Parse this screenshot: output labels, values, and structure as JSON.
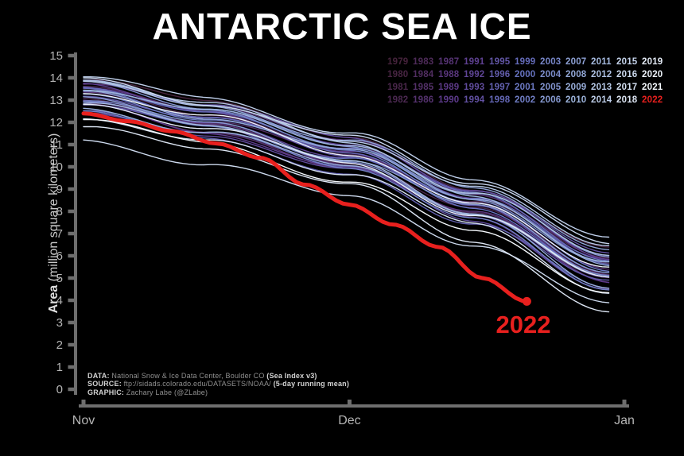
{
  "colors": {
    "background": "#000000",
    "title": "#ffffff",
    "axis": "#6e6e6e",
    "tick_label": "#b5b5b5",
    "accent_red": "#e8201e",
    "footer_text": "#8f8f8f",
    "footer_bold": "#d2d2d2"
  },
  "chart_data": {
    "type": "line",
    "title": "ANTARCTIC SEA ICE",
    "ylabel_bold": "Area",
    "ylabel_rest": " (million square kilometers)",
    "ylim": [
      0,
      15
    ],
    "y_ticks": [
      0,
      1,
      2,
      3,
      4,
      5,
      6,
      7,
      8,
      9,
      10,
      11,
      12,
      13,
      14,
      15
    ],
    "x_ticks": [
      {
        "label": "Nov",
        "day": 0
      },
      {
        "label": "Dec",
        "day": 30
      },
      {
        "label": "Jan",
        "day": 61
      }
    ],
    "x_days": [
      0,
      14,
      30,
      44,
      59.5
    ],
    "grid": false,
    "legend_position": "top-right",
    "annotation": {
      "text": "2022",
      "color": "#e8201e"
    },
    "series": [
      {
        "name": "1979",
        "color": "#46233c",
        "values": [
          13.9,
          12.9,
          11.3,
          9.1,
          6.3
        ]
      },
      {
        "name": "1980",
        "color": "#482543",
        "values": [
          13.4,
          12.3,
          10.7,
          8.5,
          5.6
        ]
      },
      {
        "name": "1981",
        "color": "#4a274b",
        "values": [
          13.0,
          11.9,
          10.3,
          8.1,
          5.1
        ]
      },
      {
        "name": "1982",
        "color": "#4c2952",
        "values": [
          13.6,
          12.5,
          10.9,
          8.7,
          5.8
        ]
      },
      {
        "name": "1983",
        "color": "#4e2b59",
        "values": [
          12.8,
          11.7,
          10.1,
          7.9,
          4.8
        ]
      },
      {
        "name": "1984",
        "color": "#502d60",
        "values": [
          13.2,
          12.1,
          10.5,
          8.3,
          5.3
        ]
      },
      {
        "name": "1985",
        "color": "#533068",
        "values": [
          12.6,
          11.5,
          9.9,
          7.7,
          4.6
        ]
      },
      {
        "name": "1986",
        "color": "#55326f",
        "values": [
          13.8,
          12.7,
          11.1,
          8.9,
          6.0
        ]
      },
      {
        "name": "1987",
        "color": "#573476",
        "values": [
          13.3,
          12.2,
          10.6,
          8.4,
          5.4
        ]
      },
      {
        "name": "1988",
        "color": "#59367d",
        "values": [
          12.9,
          11.8,
          10.2,
          8.0,
          5.0
        ]
      },
      {
        "name": "1989",
        "color": "#5b3885",
        "values": [
          13.5,
          12.4,
          10.8,
          8.6,
          5.7
        ]
      },
      {
        "name": "1990",
        "color": "#5d3a8c",
        "values": [
          12.7,
          11.6,
          10.0,
          7.8,
          4.7
        ]
      },
      {
        "name": "1991",
        "color": "#5e4091",
        "values": [
          13.7,
          12.6,
          11.0,
          8.8,
          5.9
        ]
      },
      {
        "name": "1992",
        "color": "#5f4596",
        "values": [
          13.1,
          12.0,
          10.4,
          8.2,
          5.2
        ]
      },
      {
        "name": "1993",
        "color": "#604b9c",
        "values": [
          12.5,
          11.4,
          9.8,
          7.6,
          4.5
        ]
      },
      {
        "name": "1994",
        "color": "#6150a1",
        "values": [
          13.9,
          12.8,
          11.2,
          9.0,
          6.2
        ]
      },
      {
        "name": "1995",
        "color": "#6256a6",
        "values": [
          13.2,
          12.1,
          10.5,
          8.3,
          5.3
        ]
      },
      {
        "name": "1996",
        "color": "#625cab",
        "values": [
          12.8,
          11.7,
          10.1,
          7.9,
          4.8
        ]
      },
      {
        "name": "1997",
        "color": "#6361b0",
        "values": [
          12.4,
          11.3,
          9.7,
          7.5,
          4.4
        ]
      },
      {
        "name": "1998",
        "color": "#6467b6",
        "values": [
          13.4,
          12.3,
          10.7,
          8.5,
          5.6
        ]
      },
      {
        "name": "1999",
        "color": "#656cbb",
        "values": [
          13.6,
          12.5,
          10.9,
          8.7,
          5.8
        ]
      },
      {
        "name": "2000",
        "color": "#6672c0",
        "values": [
          13.0,
          11.9,
          10.3,
          8.1,
          5.1
        ]
      },
      {
        "name": "2001",
        "color": "#6c79c3",
        "values": [
          13.3,
          12.2,
          10.6,
          8.4,
          5.4
        ]
      },
      {
        "name": "2002",
        "color": "#717fc6",
        "values": [
          12.6,
          11.5,
          9.9,
          7.7,
          4.6
        ]
      },
      {
        "name": "2003",
        "color": "#7786c8",
        "values": [
          13.5,
          12.4,
          10.8,
          8.6,
          5.7
        ]
      },
      {
        "name": "2004",
        "color": "#7c8ccb",
        "values": [
          12.9,
          11.8,
          10.2,
          8.0,
          5.0
        ]
      },
      {
        "name": "2005",
        "color": "#8293ce",
        "values": [
          13.7,
          12.6,
          11.0,
          8.8,
          5.9
        ]
      },
      {
        "name": "2006",
        "color": "#879ad1",
        "values": [
          13.1,
          12.0,
          10.4,
          8.2,
          5.2
        ]
      },
      {
        "name": "2007",
        "color": "#8da0d4",
        "values": [
          13.9,
          12.8,
          11.2,
          9.0,
          6.2
        ]
      },
      {
        "name": "2008",
        "color": "#92a7d6",
        "values": [
          13.4,
          12.3,
          10.7,
          8.5,
          5.6
        ]
      },
      {
        "name": "2009",
        "color": "#98add9",
        "values": [
          12.7,
          11.6,
          10.0,
          7.8,
          4.7
        ]
      },
      {
        "name": "2010",
        "color": "#9db4dc",
        "values": [
          13.6,
          12.5,
          10.9,
          8.7,
          5.8
        ]
      },
      {
        "name": "2011",
        "color": "#a5badf",
        "values": [
          12.9,
          11.8,
          10.2,
          8.0,
          5.0
        ]
      },
      {
        "name": "2012",
        "color": "#adc0e2",
        "values": [
          13.8,
          12.7,
          11.1,
          8.9,
          6.0
        ]
      },
      {
        "name": "2013",
        "color": "#b5c7e5",
        "values": [
          13.8,
          12.8,
          11.3,
          9.1,
          6.4
        ]
      },
      {
        "name": "2014",
        "color": "#bdcde8",
        "values": [
          14.0,
          13.1,
          11.6,
          9.4,
          6.7
        ]
      },
      {
        "name": "2015",
        "color": "#c5d3eb",
        "values": [
          13.9,
          12.9,
          11.4,
          9.2,
          6.5
        ]
      },
      {
        "name": "2016",
        "color": "#ccd9ed",
        "values": [
          11.2,
          10.2,
          8.7,
          6.3,
          4.0
        ]
      },
      {
        "name": "2017",
        "color": "#d4dff0",
        "values": [
          12.3,
          11.2,
          9.6,
          7.4,
          4.4
        ]
      },
      {
        "name": "2018",
        "color": "#dce5f3",
        "values": [
          11.9,
          10.8,
          9.1,
          6.7,
          3.5
        ]
      },
      {
        "name": "2019",
        "color": "#e4ebf6",
        "values": [
          12.8,
          11.7,
          10.1,
          7.9,
          5.1
        ]
      },
      {
        "name": "2020",
        "color": "#ecf2f9",
        "values": [
          13.3,
          12.2,
          10.6,
          8.4,
          5.5
        ]
      },
      {
        "name": "2021",
        "color": "#f4f8fc",
        "values": [
          12.1,
          11.0,
          9.4,
          7.2,
          4.2
        ]
      },
      {
        "name": "2022",
        "color": "#e8201e",
        "highlight": true,
        "days": [
          0,
          5,
          10,
          15,
          20,
          25,
          30,
          35,
          40,
          45,
          50
        ],
        "values": [
          12.4,
          12.05,
          11.6,
          11.05,
          10.4,
          9.2,
          8.3,
          7.4,
          6.4,
          5.0,
          3.95
        ]
      }
    ]
  },
  "footer": {
    "data_label": "DATA:",
    "data_text": " National Snow & Ice Data Center, Boulder CO ",
    "data_bold": "(Sea Index v3)",
    "source_label": "SOURCE:",
    "source_text": " ftp://sidads.colorado.edu/DATASETS/NOAA/ ",
    "source_bold": "(5-day running mean)",
    "graphic_label": "GRAPHIC:",
    "graphic_text": " Zachary Labe (@ZLabe)"
  }
}
